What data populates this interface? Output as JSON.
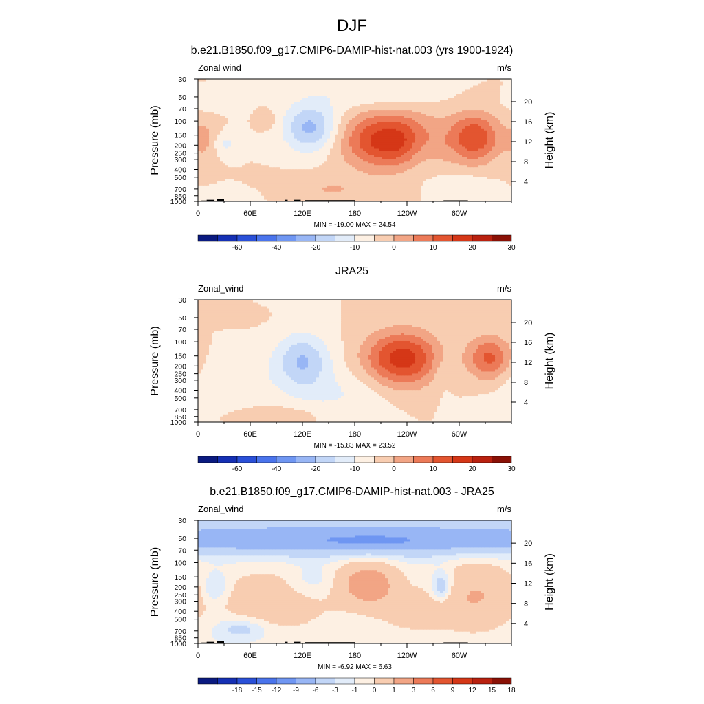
{
  "page": {
    "title": "DJF"
  },
  "colors": {
    "wind_scale": [
      "#0a1a80",
      "#1530b4",
      "#2a50d8",
      "#4a74ec",
      "#6f96f2",
      "#98b6f5",
      "#c2d6f7",
      "#e2ecf9",
      "#fdf0e3",
      "#f8cdb1",
      "#f2a585",
      "#ec7a58",
      "#e35530",
      "#d53717",
      "#b9210f",
      "#8a1106"
    ],
    "land": "#000000",
    "frame": "#000000"
  },
  "chart_data": [
    {
      "type": "heatmap",
      "title": "b.e21.B1850.f09_g17.CMIP6-DAMIP-hist-nat.003 (yrs 1900-1924)",
      "left_label": "Zonal wind",
      "right_label": "m/s",
      "ylabel": "Pressure (mb)",
      "y2label": "Height (km)",
      "x_ticks": [
        "0",
        "60E",
        "120E",
        "180",
        "120W",
        "60W"
      ],
      "x_tick_values": [
        0,
        60,
        120,
        180,
        240,
        300
      ],
      "x_range": [
        0,
        360
      ],
      "y_ticks": [
        "30",
        "50",
        "70",
        "100",
        "150",
        "200",
        "250",
        "300",
        "400",
        "500",
        "700",
        "850",
        "1000"
      ],
      "y_tick_values": [
        30,
        50,
        70,
        100,
        150,
        200,
        250,
        300,
        400,
        500,
        700,
        850,
        1000
      ],
      "y_range": [
        1000,
        30
      ],
      "y_scale": "log",
      "y2_ticks": [
        "4",
        "8",
        "12",
        "16",
        "20"
      ],
      "y2_tick_values": [
        4,
        8,
        12,
        16,
        20
      ],
      "stats": "MIN = -19.00  MAX =  24.54",
      "min": -19.0,
      "max": 24.54,
      "colorbar_levels": [
        -70,
        -60,
        -50,
        -40,
        -30,
        -20,
        -15,
        -10,
        -5,
        0,
        5,
        10,
        15,
        20,
        25,
        30
      ],
      "colorbar_labels": [
        "-60",
        "-40",
        "-20",
        "-10",
        "0",
        "10",
        "20",
        "30"
      ],
      "colorbar_label_values": [
        -60,
        -40,
        -20,
        -10,
        0,
        10,
        20,
        30
      ],
      "show_topography": true,
      "features": [
        {
          "lon": 220,
          "p": 170,
          "value": 24,
          "sx": 38,
          "sy": 0.55
        },
        {
          "lon": 318,
          "p": 160,
          "value": 19,
          "sx": 20,
          "sy": 0.5
        },
        {
          "lon": 130,
          "p": 120,
          "value": -17,
          "sx": 22,
          "sy": 0.5
        },
        {
          "lon": 10,
          "p": 170,
          "value": 6,
          "sx": 12,
          "sy": 0.5
        },
        {
          "lon": 30,
          "p": 190,
          "value": -7,
          "sx": 10,
          "sy": 0.25
        },
        {
          "lon": 255,
          "p": 220,
          "value": -4,
          "sx": 12,
          "sy": 0.5
        },
        {
          "lon": 150,
          "p": 700,
          "value": 5,
          "sx": 45,
          "sy": 0.3
        },
        {
          "lon": 300,
          "p": 650,
          "value": -5,
          "sx": 22,
          "sy": 0.25
        },
        {
          "lon": 40,
          "p": 900,
          "value": -5,
          "sx": 20,
          "sy": 0.2
        },
        {
          "lon": 80,
          "p": 95,
          "value": 4,
          "sx": 8,
          "sy": 0.2
        },
        {
          "lon": 200,
          "p": 45,
          "value": -5,
          "sx": 50,
          "sy": 0.3
        },
        {
          "lon": 20,
          "p": 60,
          "value": -4,
          "sx": 18,
          "sy": 0.2
        }
      ]
    },
    {
      "type": "heatmap",
      "title": "JRA25",
      "left_label": "Zonal_wind",
      "right_label": "m/s",
      "ylabel": "Pressure (mb)",
      "y2label": "Height (km)",
      "x_ticks": [
        "0",
        "60E",
        "120E",
        "180",
        "120W",
        "60W"
      ],
      "x_tick_values": [
        0,
        60,
        120,
        180,
        240,
        300
      ],
      "x_range": [
        0,
        360
      ],
      "y_ticks": [
        "30",
        "50",
        "70",
        "100",
        "150",
        "200",
        "250",
        "300",
        "400",
        "500",
        "700",
        "850",
        "1000"
      ],
      "y_tick_values": [
        30,
        50,
        70,
        100,
        150,
        200,
        250,
        300,
        400,
        500,
        700,
        850,
        1000
      ],
      "y_range": [
        1000,
        30
      ],
      "y_scale": "log",
      "y2_ticks": [
        "4",
        "8",
        "12",
        "16",
        "20"
      ],
      "y2_tick_values": [
        4,
        8,
        12,
        16,
        20
      ],
      "stats": "MIN = -15.83  MAX =  23.52",
      "min": -15.83,
      "max": 23.52,
      "colorbar_levels": [
        -70,
        -60,
        -50,
        -40,
        -30,
        -20,
        -15,
        -10,
        -5,
        0,
        5,
        10,
        15,
        20,
        25,
        30
      ],
      "colorbar_labels": [
        "-60",
        "-40",
        "-20",
        "-10",
        "0",
        "10",
        "20",
        "30"
      ],
      "colorbar_label_values": [
        -60,
        -40,
        -20,
        -10,
        0,
        10,
        20,
        30
      ],
      "show_topography": false,
      "features": [
        {
          "lon": 235,
          "p": 160,
          "value": 23,
          "sx": 30,
          "sy": 0.55
        },
        {
          "lon": 335,
          "p": 160,
          "value": 17,
          "sx": 18,
          "sy": 0.45
        },
        {
          "lon": 120,
          "p": 170,
          "value": -15,
          "sx": 22,
          "sy": 0.55
        },
        {
          "lon": 30,
          "p": 300,
          "value": -5,
          "sx": 40,
          "sy": 0.6
        },
        {
          "lon": 160,
          "p": 450,
          "value": -5,
          "sx": 40,
          "sy": 0.5
        },
        {
          "lon": 90,
          "p": 800,
          "value": 4,
          "sx": 40,
          "sy": 0.2
        },
        {
          "lon": 280,
          "p": 220,
          "value": -3,
          "sx": 10,
          "sy": 0.5
        },
        {
          "lon": 20,
          "p": 50,
          "value": 3,
          "sx": 30,
          "sy": 0.15
        }
      ]
    },
    {
      "type": "heatmap",
      "title": "b.e21.B1850.f09_g17.CMIP6-DAMIP-hist-nat.003 - JRA25",
      "left_label": "Zonal_wind",
      "right_label": "m/s",
      "ylabel": "Pressure (mb)",
      "y2label": "Height (km)",
      "x_ticks": [
        "0",
        "60E",
        "120E",
        "180",
        "120W",
        "60W"
      ],
      "x_tick_values": [
        0,
        60,
        120,
        180,
        240,
        300
      ],
      "x_range": [
        0,
        360
      ],
      "y_ticks": [
        "30",
        "50",
        "70",
        "100",
        "150",
        "200",
        "250",
        "300",
        "400",
        "500",
        "700",
        "850",
        "1000"
      ],
      "y_tick_values": [
        30,
        50,
        70,
        100,
        150,
        200,
        250,
        300,
        400,
        500,
        700,
        850,
        1000
      ],
      "y_range": [
        1000,
        30
      ],
      "y_scale": "log",
      "y2_ticks": [
        "4",
        "8",
        "12",
        "16",
        "20"
      ],
      "y2_tick_values": [
        4,
        8,
        12,
        16,
        20
      ],
      "stats": "MIN =  -6.92  MAX =   6.63",
      "min": -6.92,
      "max": 6.63,
      "colorbar_levels": [
        -21,
        -18,
        -15,
        -12,
        -9,
        -6,
        -3,
        -1,
        0,
        1,
        3,
        6,
        9,
        12,
        15,
        18
      ],
      "colorbar_labels": [
        "-18",
        "-15",
        "-12",
        "-9",
        "-6",
        "-3",
        "-1",
        "0",
        "1",
        "3",
        "6",
        "9",
        "12",
        "15",
        "18"
      ],
      "colorbar_label_values": [
        -18,
        -15,
        -12,
        -9,
        -6,
        -3,
        -1,
        0,
        1,
        3,
        6,
        9,
        12,
        15,
        18
      ],
      "show_topography": true,
      "features": [
        {
          "lon": 180,
          "p": 50,
          "value": -5.5,
          "sx": 250,
          "sy": 0.3
        },
        {
          "lon": 200,
          "p": 55,
          "value": -1.5,
          "sx": 40,
          "sy": 0.15
        },
        {
          "lon": 195,
          "p": 180,
          "value": 4.5,
          "sx": 25,
          "sy": 0.45
        },
        {
          "lon": 90,
          "p": 280,
          "value": 2.5,
          "sx": 45,
          "sy": 0.6
        },
        {
          "lon": 320,
          "p": 250,
          "value": 3,
          "sx": 30,
          "sy": 0.7
        },
        {
          "lon": 280,
          "p": 200,
          "value": -3,
          "sx": 8,
          "sy": 0.3
        },
        {
          "lon": 20,
          "p": 200,
          "value": -2,
          "sx": 10,
          "sy": 0.3
        },
        {
          "lon": 130,
          "p": 180,
          "value": -1.5,
          "sx": 25,
          "sy": 0.35
        },
        {
          "lon": 50,
          "p": 650,
          "value": -2,
          "sx": 20,
          "sy": 0.2
        },
        {
          "lon": 250,
          "p": 400,
          "value": 2,
          "sx": 30,
          "sy": 0.4
        }
      ]
    }
  ]
}
